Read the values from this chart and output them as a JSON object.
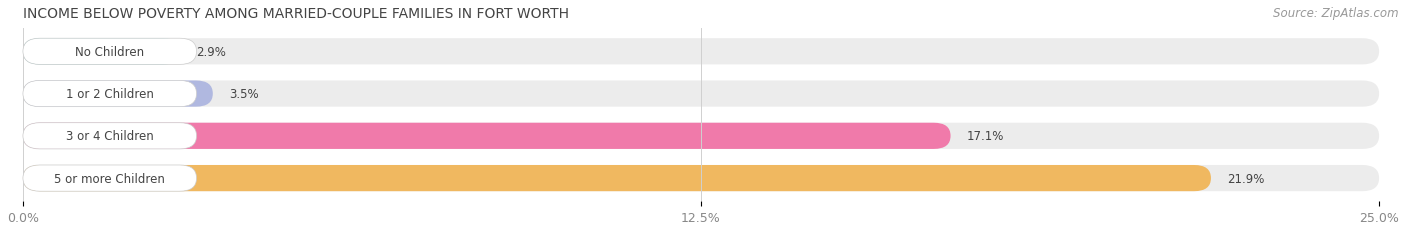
{
  "title": "INCOME BELOW POVERTY AMONG MARRIED-COUPLE FAMILIES IN FORT WORTH",
  "source": "Source: ZipAtlas.com",
  "categories": [
    "No Children",
    "1 or 2 Children",
    "3 or 4 Children",
    "5 or more Children"
  ],
  "values": [
    2.9,
    3.5,
    17.1,
    21.9
  ],
  "bar_colors": [
    "#6ecfcf",
    "#b0b8e0",
    "#f07aaa",
    "#f0b860"
  ],
  "bar_labels": [
    "2.9%",
    "3.5%",
    "17.1%",
    "21.9%"
  ],
  "xlim": [
    0,
    25.0
  ],
  "xticks": [
    0.0,
    12.5,
    25.0
  ],
  "xtick_labels": [
    "0.0%",
    "12.5%",
    "25.0%"
  ],
  "background_color": "#ffffff",
  "bar_bg_color": "#ececec",
  "title_fontsize": 10,
  "source_fontsize": 8.5,
  "label_fontsize": 8.5,
  "tick_fontsize": 9,
  "bar_height": 0.62,
  "label_color": "#444444",
  "title_color": "#444444",
  "grid_color": "#d0d0d0",
  "label_pill_color": "#ffffff"
}
